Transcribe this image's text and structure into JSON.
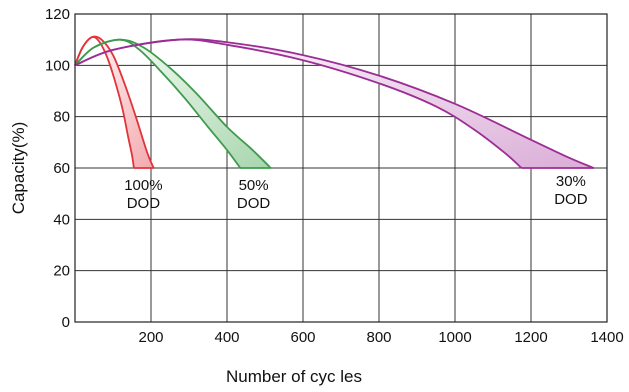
{
  "chart_data": {
    "type": "area",
    "title": "",
    "xlabel": "Number of cyc les",
    "ylabel": "Capacity(%)",
    "xlim": [
      0,
      1400
    ],
    "ylim": [
      0,
      120
    ],
    "x_ticks": [
      200,
      400,
      600,
      800,
      1000,
      1200,
      1400
    ],
    "y_ticks": [
      0,
      20,
      40,
      60,
      80,
      100,
      120
    ],
    "grid": true,
    "series": [
      {
        "label_lines": [
          "100%",
          "DOD"
        ],
        "color": "#e0343a",
        "fill_color": "#f3a9ad",
        "upper": [
          [
            0,
            100
          ],
          [
            20,
            107
          ],
          [
            45,
            111
          ],
          [
            70,
            110
          ],
          [
            100,
            104
          ],
          [
            130,
            93
          ],
          [
            160,
            80
          ],
          [
            190,
            66
          ],
          [
            207,
            60
          ]
        ],
        "lower": [
          [
            0,
            100
          ],
          [
            20,
            107
          ],
          [
            45,
            111
          ],
          [
            65,
            109
          ],
          [
            85,
            103
          ],
          [
            105,
            94
          ],
          [
            125,
            83
          ],
          [
            140,
            72
          ],
          [
            150,
            65
          ],
          [
            155,
            60
          ]
        ]
      },
      {
        "label_lines": [
          "50%",
          "DOD"
        ],
        "color": "#3e9b4c",
        "fill_color": "#a8d6ae",
        "upper": [
          [
            0,
            100
          ],
          [
            50,
            107
          ],
          [
            120,
            110
          ],
          [
            180,
            107
          ],
          [
            250,
            99
          ],
          [
            320,
            89
          ],
          [
            400,
            76
          ],
          [
            460,
            68
          ],
          [
            495,
            63
          ],
          [
            515,
            60
          ]
        ],
        "lower": [
          [
            0,
            100
          ],
          [
            50,
            107
          ],
          [
            120,
            110
          ],
          [
            170,
            106
          ],
          [
            230,
            97
          ],
          [
            290,
            87
          ],
          [
            350,
            76
          ],
          [
            400,
            67
          ],
          [
            435,
            60
          ]
        ]
      },
      {
        "label_lines": [
          "30%",
          "DOD"
        ],
        "color": "#9b2d95",
        "fill_color": "#dbaed8",
        "upper": [
          [
            0,
            100
          ],
          [
            100,
            106
          ],
          [
            270,
            110
          ],
          [
            400,
            109
          ],
          [
            600,
            104
          ],
          [
            800,
            96
          ],
          [
            1000,
            85
          ],
          [
            1200,
            71
          ],
          [
            1300,
            64
          ],
          [
            1365,
            60
          ]
        ],
        "lower": [
          [
            0,
            100
          ],
          [
            100,
            106
          ],
          [
            270,
            110
          ],
          [
            400,
            108
          ],
          [
            600,
            102
          ],
          [
            800,
            93
          ],
          [
            950,
            84
          ],
          [
            1050,
            75
          ],
          [
            1130,
            66
          ],
          [
            1175,
            60
          ]
        ]
      }
    ],
    "x_ticks_label_bind": "chart_data.x_ticks",
    "y_ticks_label_bind": "chart_data.y_ticks"
  }
}
